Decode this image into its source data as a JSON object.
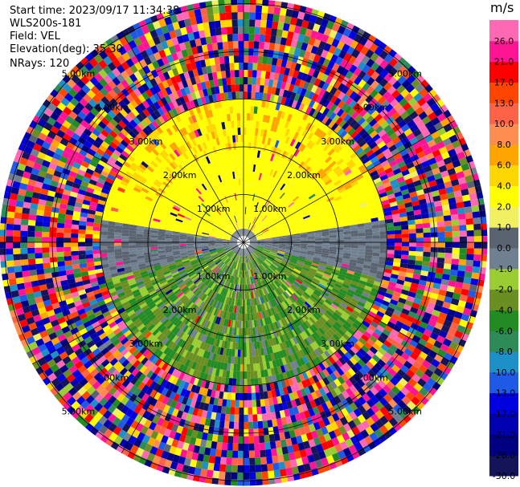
{
  "info": {
    "start_time": "Start time: 2023/09/17 11:34:38",
    "station": "WLS200s-181",
    "field": "Field: VEL",
    "elevation": "Elevation(deg): 35.30",
    "nrays": "NRays: 120"
  },
  "colorbar": {
    "unit": "m/s",
    "bins": [
      {
        "lo": -30.0,
        "hi": -26.0,
        "color": "#14145a"
      },
      {
        "lo": -26.0,
        "hi": -21.0,
        "color": "#000080"
      },
      {
        "lo": -21.0,
        "hi": -17.0,
        "color": "#0000b0"
      },
      {
        "lo": -17.0,
        "hi": -13.0,
        "color": "#0000e0"
      },
      {
        "lo": -13.0,
        "hi": -10.0,
        "color": "#1e5ae6"
      },
      {
        "lo": -10.0,
        "hi": -8.0,
        "color": "#1e90c8"
      },
      {
        "lo": -8.0,
        "hi": -6.0,
        "color": "#2e8b57"
      },
      {
        "lo": -6.0,
        "hi": -4.0,
        "color": "#228b22"
      },
      {
        "lo": -4.0,
        "hi": -2.0,
        "color": "#6b8e23"
      },
      {
        "lo": -2.0,
        "hi": -1.0,
        "color": "#9acd32"
      },
      {
        "lo": -1.0,
        "hi": 0.0,
        "color": "#708090"
      },
      {
        "lo": 0.0,
        "hi": 1.0,
        "color": "#5a6470"
      },
      {
        "lo": 1.0,
        "hi": 2.0,
        "color": "#f0f060"
      },
      {
        "lo": 2.0,
        "hi": 4.0,
        "color": "#ffff00"
      },
      {
        "lo": 4.0,
        "hi": 6.0,
        "color": "#ffd700"
      },
      {
        "lo": 6.0,
        "hi": 8.0,
        "color": "#ffa500"
      },
      {
        "lo": 8.0,
        "hi": 10.0,
        "color": "#ff8c50"
      },
      {
        "lo": 10.0,
        "hi": 13.0,
        "color": "#ff6347"
      },
      {
        "lo": 13.0,
        "hi": 17.0,
        "color": "#ff4500"
      },
      {
        "lo": 17.0,
        "hi": 21.0,
        "color": "#ff0000"
      },
      {
        "lo": 21.0,
        "hi": 26.0,
        "color": "#ff1493"
      },
      {
        "lo": 26.0,
        "hi": 30.0,
        "color": "#ff69b4"
      }
    ],
    "tick_labels": [
      "-30.0",
      "-26.0",
      "-21.0",
      "-17.0",
      "-13.0",
      "-10.0",
      "-8.0",
      "-6.0",
      "-4.0",
      "-2.0",
      "-1.0",
      "0.0",
      "1.0",
      "2.0",
      "4.0",
      "6.0",
      "8.0",
      "10.0",
      "13.0",
      "17.0",
      "21.0",
      "26.0"
    ]
  },
  "chart_data": {
    "type": "heatmap",
    "subtype": "polar PPI scan",
    "field": "VEL",
    "unit": "m/s",
    "range_rings_km": [
      1.0,
      2.0,
      3.0,
      4.0,
      5.0
    ],
    "ring_labels": [
      "1.00km",
      "2.00km",
      "3.00km",
      "4.00km",
      "5.00km"
    ],
    "n_rays": 120,
    "max_range_km": 5.1,
    "spoke_angles_deg": [
      0,
      30,
      60,
      90,
      120,
      150,
      180,
      210,
      240,
      270,
      300,
      330
    ],
    "pattern": "near field: approx +2..+4 m/s (yellow) to the north, -1..-6 m/s (grey/green) to the south; beyond ~3 km noisy values spanning -30..30 m/s"
  }
}
